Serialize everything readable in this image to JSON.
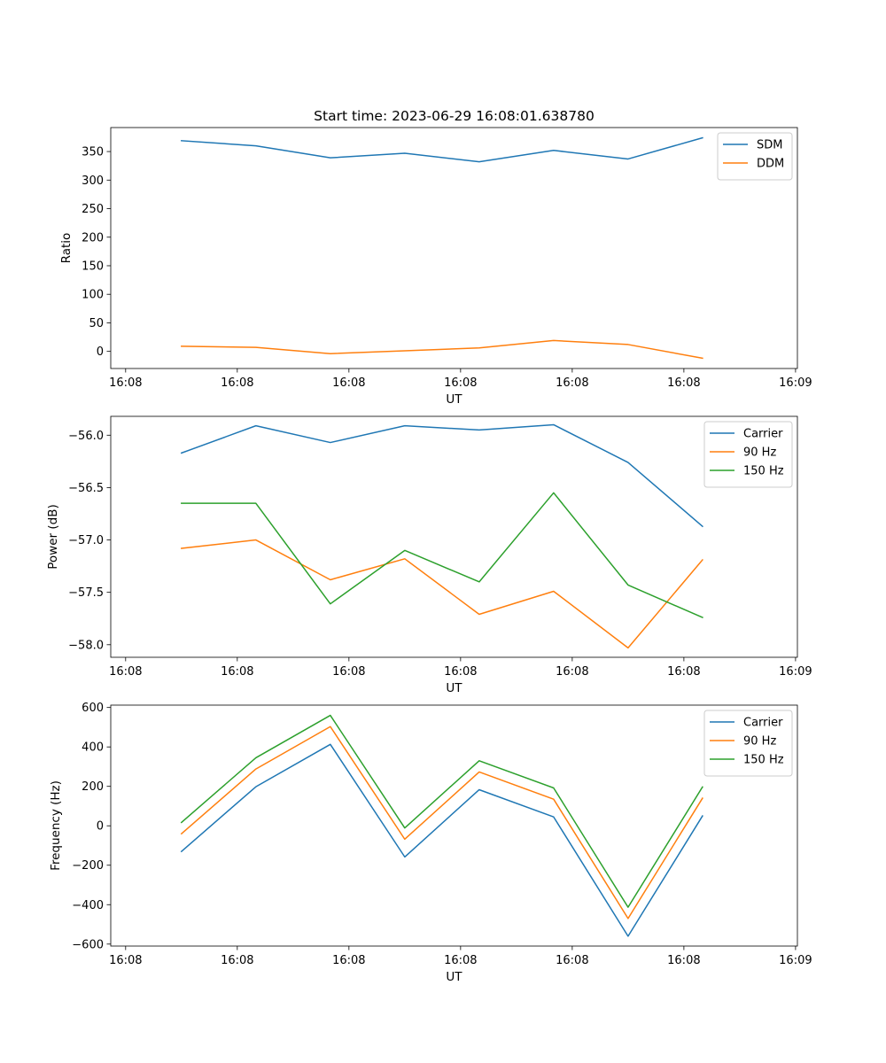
{
  "figure_title": "Start time: 2023-06-29 16:08:01.638780",
  "colors": {
    "c0": "#1f77b4",
    "c1": "#ff7f0e",
    "c2": "#2ca02c"
  },
  "chart_data": [
    {
      "type": "line",
      "title": "Start time: 2023-06-29 16:08:01.638780",
      "xlabel": "UT",
      "ylabel": "Ratio",
      "x_tick_labels": [
        "16:08",
        "16:08",
        "16:08",
        "16:08",
        "16:08",
        "16:08",
        "16:09"
      ],
      "x_ticks_s": [
        0,
        0.3,
        0.6,
        0.9,
        1.2,
        1.5,
        1.8
      ],
      "x_lim_s": [
        -0.04,
        1.805
      ],
      "y_ticks": [
        0,
        50,
        100,
        150,
        200,
        250,
        300,
        350
      ],
      "ylim": [
        -30,
        392
      ],
      "legend": "top-right",
      "grid": false,
      "x_s": [
        0.15,
        0.35,
        0.55,
        0.75,
        0.95,
        1.15,
        1.35,
        1.55
      ],
      "series": [
        {
          "name": "SDM",
          "color": "#1f77b4",
          "values": [
            369,
            360,
            339,
            347,
            332,
            352,
            337,
            374
          ]
        },
        {
          "name": "DDM",
          "color": "#ff7f0e",
          "values": [
            9,
            7,
            -4,
            1,
            6,
            19,
            12,
            -12
          ]
        }
      ]
    },
    {
      "type": "line",
      "xlabel": "UT",
      "ylabel": "Power (dB)",
      "x_tick_labels": [
        "16:08",
        "16:08",
        "16:08",
        "16:08",
        "16:08",
        "16:08",
        "16:09"
      ],
      "x_ticks_s": [
        0,
        0.3,
        0.6,
        0.9,
        1.2,
        1.5,
        1.8
      ],
      "x_lim_s": [
        -0.04,
        1.805
      ],
      "y_ticks": [
        -58.0,
        -57.5,
        -57.0,
        -56.5,
        -56.0
      ],
      "y_tick_labels": [
        "−58.0",
        "−57.5",
        "−57.0",
        "−56.5",
        "−56.0"
      ],
      "ylim": [
        -58.12,
        -55.82
      ],
      "legend": "top-right",
      "grid": false,
      "x_s": [
        0.15,
        0.35,
        0.55,
        0.75,
        0.95,
        1.15,
        1.35,
        1.55
      ],
      "series": [
        {
          "name": "Carrier",
          "color": "#1f77b4",
          "values": [
            -56.17,
            -55.91,
            -56.07,
            -55.91,
            -55.95,
            -55.9,
            -56.26,
            -56.87
          ]
        },
        {
          "name": "90 Hz",
          "color": "#ff7f0e",
          "values": [
            -57.08,
            -57.0,
            -57.38,
            -57.18,
            -57.71,
            -57.49,
            -58.03,
            -57.19
          ]
        },
        {
          "name": "150 Hz",
          "color": "#2ca02c",
          "values": [
            -56.65,
            -56.65,
            -57.61,
            -57.1,
            -57.4,
            -56.55,
            -57.43,
            -57.74
          ]
        }
      ]
    },
    {
      "type": "line",
      "xlabel": "UT",
      "ylabel": "Frequency (Hz)",
      "x_tick_labels": [
        "16:08",
        "16:08",
        "16:08",
        "16:08",
        "16:08",
        "16:08",
        "16:09"
      ],
      "x_ticks_s": [
        0,
        0.3,
        0.6,
        0.9,
        1.2,
        1.5,
        1.8
      ],
      "x_lim_s": [
        -0.04,
        1.805
      ],
      "y_ticks": [
        -600,
        -400,
        -200,
        0,
        200,
        400,
        600
      ],
      "y_tick_labels": [
        "−600",
        "−400",
        "−200",
        "0",
        "200",
        "400",
        "600"
      ],
      "ylim": [
        -610,
        612
      ],
      "legend": "top-right",
      "grid": false,
      "x_s": [
        0.15,
        0.35,
        0.55,
        0.75,
        0.95,
        1.15,
        1.35,
        1.55
      ],
      "series": [
        {
          "name": "Carrier",
          "color": "#1f77b4",
          "values": [
            -130,
            198,
            413,
            -158,
            183,
            45,
            -560,
            50
          ]
        },
        {
          "name": "90 Hz",
          "color": "#ff7f0e",
          "values": [
            -40,
            288,
            503,
            -68,
            273,
            135,
            -470,
            140
          ]
        },
        {
          "name": "150 Hz",
          "color": "#2ca02c",
          "values": [
            17,
            345,
            560,
            -11,
            330,
            192,
            -413,
            197
          ]
        }
      ]
    }
  ]
}
